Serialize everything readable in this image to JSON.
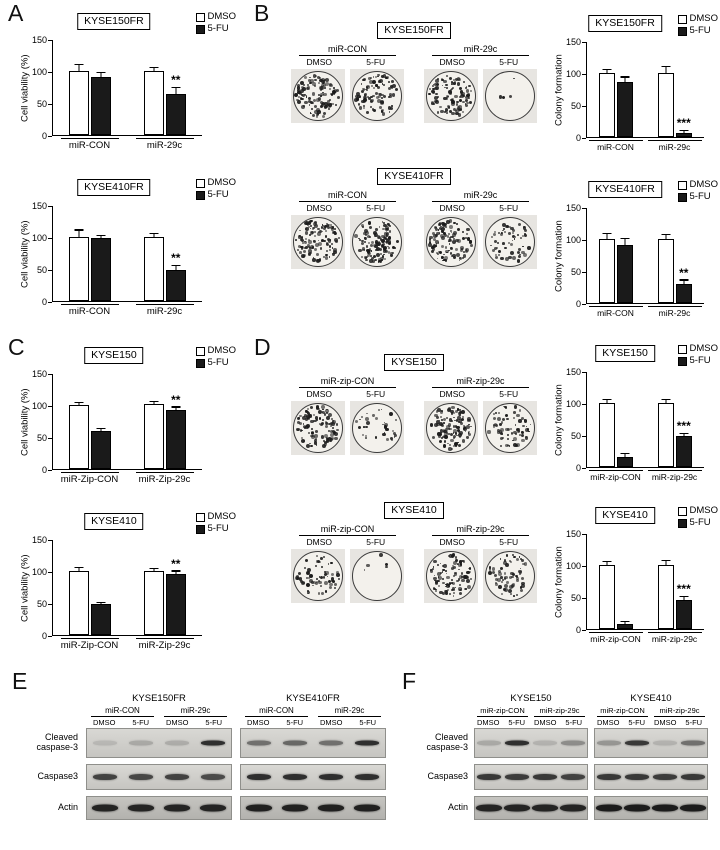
{
  "panels": {
    "A": "A",
    "B": "B",
    "C": "C",
    "D": "D",
    "E": "E",
    "F": "F"
  },
  "chart_data": [
    {
      "id": "A1",
      "type": "bar",
      "title": "KYSE150FR",
      "ylabel": "Cell viability (%)",
      "ylim": [
        0,
        150
      ],
      "yticks": [
        0,
        50,
        100,
        150
      ],
      "legend_position": "top-right",
      "grid": false,
      "groups": [
        "miR-CON",
        "miR-29c"
      ],
      "series": [
        {
          "name": "DMSO",
          "fill": "#ffffff",
          "values": [
            100,
            100
          ],
          "errors": [
            9,
            4
          ]
        },
        {
          "name": "5-FU",
          "fill": "#1a1a1a",
          "values": [
            91,
            64
          ],
          "errors": [
            6,
            9
          ]
        }
      ],
      "sig": {
        "group": 1,
        "series": 1,
        "text": "**"
      }
    },
    {
      "id": "A2",
      "type": "bar",
      "title": "KYSE410FR",
      "ylabel": "Cell viability (%)",
      "ylim": [
        0,
        150
      ],
      "yticks": [
        0,
        50,
        100,
        150
      ],
      "legend_position": "top-right",
      "grid": false,
      "groups": [
        "miR-CON",
        "miR-29c"
      ],
      "series": [
        {
          "name": "DMSO",
          "fill": "#ffffff",
          "values": [
            100,
            100
          ],
          "errors": [
            10,
            4
          ]
        },
        {
          "name": "5-FU",
          "fill": "#1a1a1a",
          "values": [
            98,
            48
          ],
          "errors": [
            3,
            7
          ]
        }
      ],
      "sig": {
        "group": 1,
        "series": 1,
        "text": "**"
      }
    },
    {
      "id": "B1",
      "type": "bar",
      "title": "KYSE150FR",
      "ylabel": "Colony formation",
      "ylim": [
        0,
        150
      ],
      "yticks": [
        0,
        50,
        100,
        150
      ],
      "legend_position": "top-right",
      "grid": false,
      "groups": [
        "miR-CON",
        "miR-29c"
      ],
      "series": [
        {
          "name": "DMSO",
          "fill": "#ffffff",
          "values": [
            100,
            100
          ],
          "errors": [
            4,
            9
          ]
        },
        {
          "name": "5-FU",
          "fill": "#1a1a1a",
          "values": [
            86,
            6
          ],
          "errors": [
            7,
            3
          ]
        }
      ],
      "sig": {
        "group": 1,
        "series": 1,
        "text": "***"
      }
    },
    {
      "id": "B2",
      "type": "bar",
      "title": "KYSE410FR",
      "ylabel": "Colony formation",
      "ylim": [
        0,
        150
      ],
      "yticks": [
        0,
        50,
        100,
        150
      ],
      "legend_position": "top-right",
      "grid": false,
      "groups": [
        "miR-CON",
        "miR-29c"
      ],
      "series": [
        {
          "name": "DMSO",
          "fill": "#ffffff",
          "values": [
            100,
            100
          ],
          "errors": [
            8,
            6
          ]
        },
        {
          "name": "5-FU",
          "fill": "#1a1a1a",
          "values": [
            90,
            30
          ],
          "errors": [
            10,
            5
          ]
        }
      ],
      "sig": {
        "group": 1,
        "series": 1,
        "text": "**"
      }
    },
    {
      "id": "C1",
      "type": "bar",
      "title": "KYSE150",
      "ylabel": "Cell viability (%)",
      "ylim": [
        0,
        150
      ],
      "yticks": [
        0,
        50,
        100,
        150
      ],
      "legend_position": "top-right",
      "grid": false,
      "groups": [
        "miR-Zip-CON",
        "miR-Zip-29c"
      ],
      "series": [
        {
          "name": "DMSO",
          "fill": "#ffffff",
          "values": [
            100,
            102
          ],
          "errors": [
            3,
            3
          ]
        },
        {
          "name": "5-FU",
          "fill": "#1a1a1a",
          "values": [
            60,
            92
          ],
          "errors": [
            2,
            4
          ]
        }
      ],
      "sig": {
        "group": 1,
        "series": 1,
        "text": "**"
      }
    },
    {
      "id": "C2",
      "type": "bar",
      "title": "KYSE410",
      "ylabel": "Cell viability (%)",
      "ylim": [
        0,
        150
      ],
      "yticks": [
        0,
        50,
        100,
        150
      ],
      "legend_position": "top-right",
      "grid": false,
      "groups": [
        "miR-Zip-CON",
        "miR-Zip-29c"
      ],
      "series": [
        {
          "name": "DMSO",
          "fill": "#ffffff",
          "values": [
            100,
            100
          ],
          "errors": [
            5,
            3
          ]
        },
        {
          "name": "5-FU",
          "fill": "#1a1a1a",
          "values": [
            48,
            95
          ],
          "errors": [
            2,
            4
          ]
        }
      ],
      "sig": {
        "group": 1,
        "series": 1,
        "text": "**"
      }
    },
    {
      "id": "D1",
      "type": "bar",
      "title": "KYSE150",
      "ylabel": "Colony formation",
      "ylim": [
        0,
        150
      ],
      "yticks": [
        0,
        50,
        100,
        150
      ],
      "legend_position": "top-right",
      "grid": false,
      "groups": [
        "miR-zip-CON",
        "miR-zip-29c"
      ],
      "series": [
        {
          "name": "DMSO",
          "fill": "#ffffff",
          "values": [
            100,
            100
          ],
          "errors": [
            4,
            5
          ]
        },
        {
          "name": "5-FU",
          "fill": "#1a1a1a",
          "values": [
            16,
            48
          ],
          "errors": [
            4,
            4
          ]
        }
      ],
      "sig": {
        "group": 1,
        "series": 1,
        "text": "***"
      }
    },
    {
      "id": "D2",
      "type": "bar",
      "title": "KYSE410",
      "ylabel": "Colony formation",
      "ylim": [
        0,
        150
      ],
      "yticks": [
        0,
        50,
        100,
        150
      ],
      "legend_position": "top-right",
      "grid": false,
      "groups": [
        "miR-zip-CON",
        "miR-zip-29c"
      ],
      "series": [
        {
          "name": "DMSO",
          "fill": "#ffffff",
          "values": [
            100,
            100
          ],
          "errors": [
            5,
            6
          ]
        },
        {
          "name": "5-FU",
          "fill": "#1a1a1a",
          "values": [
            8,
            46
          ],
          "errors": [
            3,
            4
          ]
        }
      ],
      "sig": {
        "group": 1,
        "series": 1,
        "text": "***"
      }
    }
  ],
  "colony": {
    "B_top": {
      "title": "KYSE150FR",
      "groups": [
        {
          "name": "miR-CON",
          "lanes": [
            "DMSO",
            "5-FU"
          ],
          "densities": [
            0.85,
            0.72
          ]
        },
        {
          "name": "miR-29c",
          "lanes": [
            "DMSO",
            "5-FU"
          ],
          "densities": [
            0.8,
            0.03
          ]
        }
      ]
    },
    "B_bottom": {
      "title": "KYSE410FR",
      "groups": [
        {
          "name": "miR-CON",
          "lanes": [
            "DMSO",
            "5-FU"
          ],
          "densities": [
            0.97,
            0.95
          ]
        },
        {
          "name": "miR-29c",
          "lanes": [
            "DMSO",
            "5-FU"
          ],
          "densities": [
            0.9,
            0.45
          ]
        }
      ]
    },
    "D_top": {
      "title": "KYSE150",
      "groups": [
        {
          "name": "miR-zip-CON",
          "lanes": [
            "DMSO",
            "5-FU"
          ],
          "densities": [
            0.85,
            0.25
          ]
        },
        {
          "name": "miR-zip-29c",
          "lanes": [
            "DMSO",
            "5-FU"
          ],
          "densities": [
            0.85,
            0.55
          ]
        }
      ]
    },
    "D_bottom": {
      "title": "KYSE410",
      "groups": [
        {
          "name": "miR-zip-CON",
          "lanes": [
            "DMSO",
            "5-FU"
          ],
          "densities": [
            0.5,
            0.04
          ]
        },
        {
          "name": "miR-zip-29c",
          "lanes": [
            "DMSO",
            "5-FU"
          ],
          "densities": [
            0.8,
            0.5
          ]
        }
      ]
    }
  },
  "blots": {
    "E": {
      "row_labels": [
        "Cleaved caspase-3",
        "Caspase3",
        "Actin"
      ],
      "groups": [
        {
          "title": "KYSE150FR",
          "subgroups": [
            "miR-CON",
            "miR-29c"
          ],
          "lanes": [
            "DMSO",
            "5-FU",
            "DMSO",
            "5-FU"
          ],
          "rows": [
            {
              "name": "cleaved-caspase-3",
              "intensities": [
                0.12,
                0.2,
                0.18,
                0.85
              ]
            },
            {
              "name": "caspase3",
              "intensities": [
                0.75,
                0.72,
                0.75,
                0.7
              ]
            },
            {
              "name": "actin",
              "intensities": [
                0.9,
                0.9,
                0.9,
                0.9
              ]
            }
          ]
        },
        {
          "title": "KYSE410FR",
          "subgroups": [
            "miR-CON",
            "miR-29c"
          ],
          "lanes": [
            "DMSO",
            "5-FU",
            "DMSO",
            "5-FU"
          ],
          "rows": [
            {
              "name": "cleaved-caspase-3",
              "intensities": [
                0.5,
                0.55,
                0.5,
                0.85
              ]
            },
            {
              "name": "caspase3",
              "intensities": [
                0.85,
                0.85,
                0.85,
                0.85
              ]
            },
            {
              "name": "actin",
              "intensities": [
                0.92,
                0.92,
                0.92,
                0.92
              ]
            }
          ]
        }
      ]
    },
    "F": {
      "row_labels": [
        "Cleaved caspase-3",
        "Caspase3",
        "Actin"
      ],
      "groups": [
        {
          "title": "KYSE150",
          "subgroups": [
            "miR-zip-CON",
            "miR-zip-29c"
          ],
          "lanes": [
            "DMSO",
            "5-FU",
            "DMSO",
            "5-FU"
          ],
          "rows": [
            {
              "name": "cleaved-caspase-3",
              "intensities": [
                0.2,
                0.85,
                0.15,
                0.35
              ]
            },
            {
              "name": "caspase3",
              "intensities": [
                0.8,
                0.78,
                0.8,
                0.75
              ]
            },
            {
              "name": "actin",
              "intensities": [
                0.9,
                0.9,
                0.9,
                0.9
              ]
            }
          ]
        },
        {
          "title": "KYSE410",
          "subgroups": [
            "miR-zip-CON",
            "miR-zip-29c"
          ],
          "lanes": [
            "DMSO",
            "5-FU",
            "DMSO",
            "5-FU"
          ],
          "rows": [
            {
              "name": "cleaved-caspase-3",
              "intensities": [
                0.3,
                0.8,
                0.15,
                0.5
              ]
            },
            {
              "name": "caspase3",
              "intensities": [
                0.8,
                0.8,
                0.78,
                0.8
              ]
            },
            {
              "name": "actin",
              "intensities": [
                0.95,
                0.95,
                0.95,
                0.95
              ]
            }
          ]
        }
      ]
    }
  }
}
